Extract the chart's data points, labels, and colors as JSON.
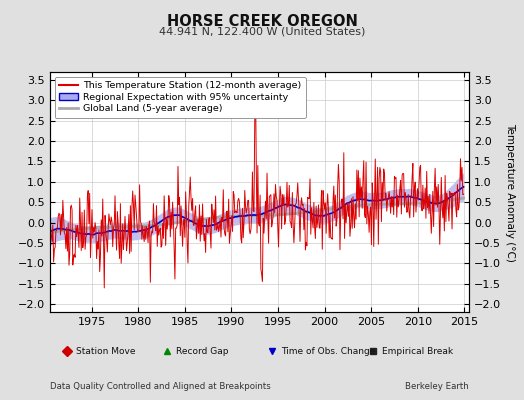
{
  "title": "HORSE CREEK OREGON",
  "subtitle": "44.941 N, 122.400 W (United States)",
  "ylabel": "Temperature Anomaly (°C)",
  "xlabel_note": "Data Quality Controlled and Aligned at Breakpoints",
  "credit": "Berkeley Earth",
  "xlim": [
    1970.5,
    2015.5
  ],
  "ylim": [
    -2.2,
    3.7
  ],
  "yticks_left": [
    -2,
    -1.5,
    -1,
    -0.5,
    0,
    0.5,
    1,
    1.5,
    2,
    2.5,
    3,
    3.5
  ],
  "xticks": [
    1975,
    1980,
    1985,
    1990,
    1995,
    2000,
    2005,
    2010,
    2015
  ],
  "bg_color": "#e0e0e0",
  "plot_bg_color": "#ffffff",
  "station_color": "#dd0000",
  "regional_color": "#0000cc",
  "regional_fill_color": "#aaaaee",
  "global_color": "#aaaaaa",
  "legend_items": [
    "This Temperature Station (12-month average)",
    "Regional Expectation with 95% uncertainty",
    "Global Land (5-year average)"
  ],
  "bottom_legend": [
    {
      "marker": "D",
      "color": "#cc0000",
      "label": "Station Move"
    },
    {
      "marker": "^",
      "color": "#008800",
      "label": "Record Gap"
    },
    {
      "marker": "v",
      "color": "#0000cc",
      "label": "Time of Obs. Change"
    },
    {
      "marker": "s",
      "color": "#222222",
      "label": "Empirical Break"
    }
  ]
}
